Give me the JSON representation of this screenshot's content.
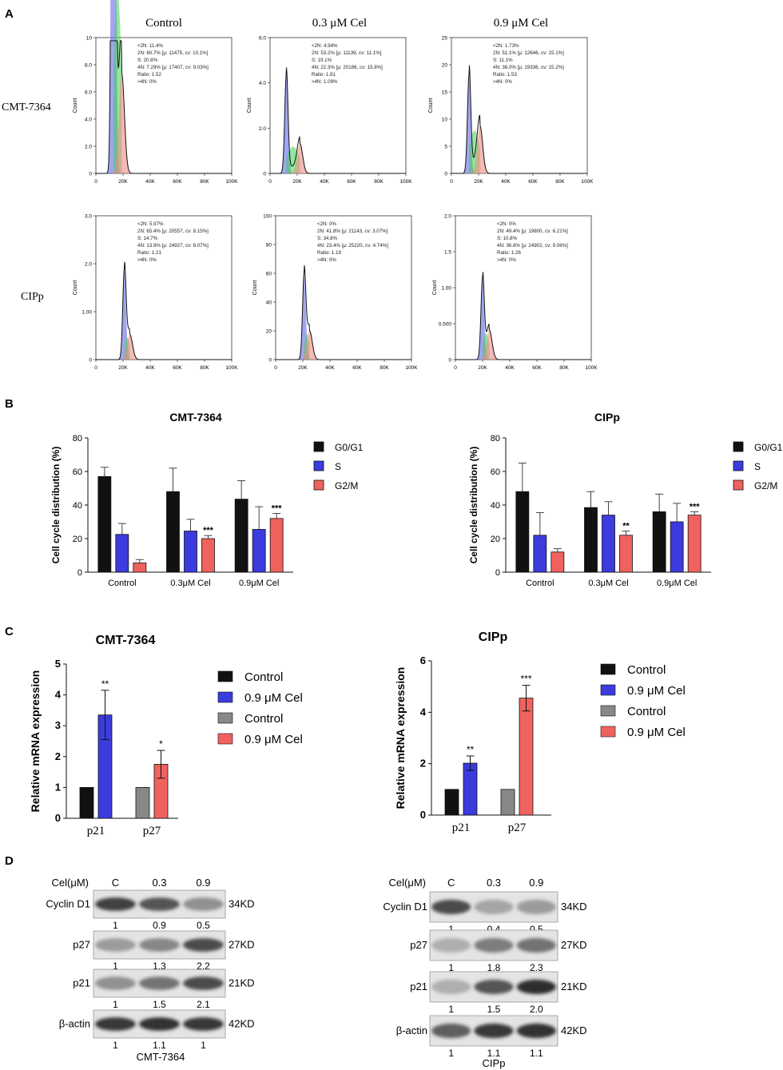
{
  "panels": {
    "A": {
      "letter": "A",
      "conditions": [
        "Control",
        "0.3 μM  Cel",
        "0.9 μM Cel"
      ],
      "rows": [
        {
          "cell_line": "CMT-7364",
          "plots": [
            {
              "y_ticks": [
                "10",
                "8.0",
                "6.0",
                "4.0",
                "2.0",
                "0"
              ],
              "stats": [
                "<2N: 11.4%",
                "2N: 60.7%  [μ: 11475, cv: 10.1%]",
                "S: 20.8%",
                "4N: 7.29%  [μ: 17407, cv: 9.03%]",
                "Ratio: 1.52",
                ">4N: 0%"
              ],
              "g1_peak": 8.6,
              "g1_pos": 0.13,
              "g2_pos": 0.19,
              "g2_height": 0.1
            },
            {
              "y_ticks": [
                "6.0",
                "4.0",
                "2.0",
                "0"
              ],
              "stats": [
                "<2N: 4.94%",
                "2N: 53.2%  [μ: 11139, cv: 11.1%]",
                "S: 19.1%",
                "4N: 22.3%  [μ: 20186, cv: 15.8%]",
                "Ratio: 1.81",
                ">4N: 1.09%"
              ],
              "g1_peak": 0.85,
              "g1_pos": 0.12,
              "g2_pos": 0.22,
              "g2_height": 0.3
            },
            {
              "y_ticks": [
                "25",
                "20",
                "15",
                "10",
                "5",
                "0"
              ],
              "stats": [
                "<2N: 1.73%",
                "2N: 51.1%  [μ: 12646, cv: 15.1%]",
                "S: 11.1%",
                "4N: 36.0%  [μ: 19336, cv: 15.2%]",
                "Ratio: 1.53",
                ">4N: 0%"
              ],
              "g1_peak": 0.85,
              "g1_pos": 0.13,
              "g2_pos": 0.21,
              "g2_height": 0.48
            }
          ]
        },
        {
          "cell_line": "CIPp",
          "plots": [
            {
              "y_ticks": [
                "3.0",
                "2.0",
                "1.00",
                "0"
              ],
              "stats": [
                "<2N: 5.97%",
                "2N: 65.4%  [μ: 20557, cv: 8.15%]",
                "S: 14.7%",
                "4N: 13.9%  [μ: 24927, cv: 6.07%]",
                "Ratio: 1.21",
                ">4N: 0%"
              ],
              "g1_peak": 0.72,
              "g1_pos": 0.21,
              "g2_pos": 0.25,
              "g2_height": 0.28
            },
            {
              "y_ticks": [
                "100",
                "80",
                "60",
                "40",
                "20",
                "0"
              ],
              "stats": [
                "<2N: 0%",
                "2N: 41.8%  [μ: 21143, cv: 3.07%]",
                "S: 34.8%",
                "4N: 23.4%  [μ: 25220, cv: 4.74%]",
                "Ratio: 1.19",
                ">4N: 0%"
              ],
              "g1_peak": 0.68,
              "g1_pos": 0.21,
              "g2_pos": 0.25,
              "g2_height": 0.34
            },
            {
              "y_ticks": [
                "2.0",
                "1.5",
                "1.00",
                "0.500",
                "0"
              ],
              "stats": [
                "<2N: 0%",
                "2N: 49.4%  [μ: 19800, cv: 6.21%]",
                "S: 10.8%",
                "4N: 36.8%  [μ: 24902, cv: 9.06%]",
                "Ratio: 1.26",
                ">4N: 0%"
              ],
              "g1_peak": 0.66,
              "g1_pos": 0.2,
              "g2_pos": 0.25,
              "g2_height": 0.36
            }
          ]
        }
      ],
      "x_ticks": [
        "0",
        "20K",
        "40K",
        "60K",
        "80K",
        "100K"
      ],
      "y_label": "Count"
    },
    "B": {
      "letter": "B"
    },
    "C": {
      "letter": "C"
    },
    "D": {
      "letter": "D"
    }
  },
  "chart_data": [
    {
      "id": "B-CMT-7364",
      "type": "bar",
      "title": "CMT-7364",
      "categories": [
        "Control",
        "0.3μM Cel",
        "0.9μM Cel"
      ],
      "ylabel": "Cell cycle distribution (%)",
      "ylim": [
        0,
        80
      ],
      "yticks": [
        0,
        20,
        40,
        60,
        80
      ],
      "series": [
        {
          "name": "G0/G1",
          "color": "#111111",
          "values": [
            57,
            48,
            43.5
          ],
          "errors": [
            5.5,
            14,
            11
          ]
        },
        {
          "name": "S",
          "color": "#3b3bde",
          "values": [
            22.5,
            24.5,
            25.5
          ],
          "errors": [
            6.5,
            7,
            13.5
          ]
        },
        {
          "name": "G2/M",
          "color": "#f0625e",
          "values": [
            5.5,
            20,
            32
          ],
          "errors": [
            2,
            1.8,
            3
          ]
        }
      ],
      "annotations": [
        {
          "category": "0.3μM Cel",
          "series": "G2/M",
          "text": "***"
        },
        {
          "category": "0.9μM Cel",
          "series": "G2/M",
          "text": "***"
        }
      ]
    },
    {
      "id": "B-CIPp",
      "type": "bar",
      "title": "CIPp",
      "categories": [
        "Control",
        "0.3μM Cel",
        "0.9μM Cel"
      ],
      "ylabel": "Cell cycle distribution (%)",
      "ylim": [
        0,
        80
      ],
      "yticks": [
        0,
        20,
        40,
        60,
        80
      ],
      "series": [
        {
          "name": "G0/G1",
          "color": "#111111",
          "values": [
            48,
            38.5,
            36
          ],
          "errors": [
            17,
            9.5,
            10.5
          ]
        },
        {
          "name": "S",
          "color": "#3b3bde",
          "values": [
            22,
            34,
            30
          ],
          "errors": [
            13.5,
            8,
            11
          ]
        },
        {
          "name": "G2/M",
          "color": "#f0625e",
          "values": [
            12,
            22,
            34
          ],
          "errors": [
            2,
            2.5,
            2
          ]
        }
      ],
      "annotations": [
        {
          "category": "0.3μM Cel",
          "series": "G2/M",
          "text": "**"
        },
        {
          "category": "0.9μM Cel",
          "series": "G2/M",
          "text": "***"
        }
      ]
    },
    {
      "id": "C-CMT-7364",
      "type": "bar",
      "title": "CMT-7364",
      "categories": [
        "p21",
        "p27"
      ],
      "ylabel": "Relative mRNA expression",
      "ylim": [
        0,
        5
      ],
      "yticks": [
        0,
        1,
        2,
        3,
        4,
        5
      ],
      "groups": [
        {
          "category": "p21",
          "bars": [
            {
              "name": "Control",
              "color": "#111111",
              "value": 1,
              "error": 0
            },
            {
              "name": "0.9 μM Cel",
              "color": "#3b3bde",
              "value": 3.35,
              "error": 0.8,
              "sig": "**"
            }
          ]
        },
        {
          "category": "p27",
          "bars": [
            {
              "name": "Control",
              "color": "#888888",
              "value": 1,
              "error": 0
            },
            {
              "name": "0.9 μM Cel",
              "color": "#f0625e",
              "value": 1.75,
              "error": 0.45,
              "sig": "*"
            }
          ]
        }
      ]
    },
    {
      "id": "C-CIPp",
      "type": "bar",
      "title": "CIPp",
      "categories": [
        "p21",
        "p27"
      ],
      "ylabel": "Relative mRNA expression",
      "ylim": [
        0,
        6
      ],
      "yticks": [
        0,
        2,
        4,
        6
      ],
      "groups": [
        {
          "category": "p21",
          "bars": [
            {
              "name": "Control",
              "color": "#111111",
              "value": 1,
              "error": 0
            },
            {
              "name": "0.9 μM Cel",
              "color": "#3b3bde",
              "value": 2.02,
              "error": 0.28,
              "sig": "**"
            }
          ]
        },
        {
          "category": "p27",
          "bars": [
            {
              "name": "Control",
              "color": "#888888",
              "value": 1,
              "error": 0
            },
            {
              "name": "0.9 μM Cel",
              "color": "#f0625e",
              "value": 4.55,
              "error": 0.5,
              "sig": "***"
            }
          ]
        }
      ]
    }
  ],
  "legend_C": [
    {
      "name": "Control",
      "color": "#111111"
    },
    {
      "name": "0.9 μM Cel",
      "color": "#3b3bde"
    },
    {
      "name": "Control",
      "color": "#888888"
    },
    {
      "name": "0.9 μM Cel",
      "color": "#f0625e"
    }
  ],
  "blots": [
    {
      "cell_line": "CMT-7364",
      "header_label": "Cel(μM)",
      "lanes": [
        "C",
        "0.3",
        "0.9"
      ],
      "proteins": [
        {
          "name": "Cyclin D1",
          "size": "34KD",
          "quant": [
            "1",
            "0.9",
            "0.5"
          ],
          "intensity": [
            0.85,
            0.75,
            0.45
          ]
        },
        {
          "name": "p27",
          "size": "27KD",
          "quant": [
            "1",
            "1.3",
            "2.2"
          ],
          "intensity": [
            0.4,
            0.5,
            0.8
          ]
        },
        {
          "name": "p21",
          "size": "21KD",
          "quant": [
            "1",
            "1.5",
            "2.1"
          ],
          "intensity": [
            0.45,
            0.6,
            0.8
          ]
        },
        {
          "name": "β-actin",
          "size": "42KD",
          "quant": [
            "1",
            "1.1",
            "1"
          ],
          "intensity": [
            0.9,
            0.92,
            0.9
          ]
        }
      ]
    },
    {
      "cell_line": "CIPp",
      "header_label": "Cel(μM)",
      "lanes": [
        "C",
        "0.3",
        "0.9"
      ],
      "proteins": [
        {
          "name": "Cyclin D1",
          "size": "34KD",
          "quant": [
            "1",
            "0.4",
            "0.5"
          ],
          "intensity": [
            0.8,
            0.35,
            0.4
          ]
        },
        {
          "name": "p27",
          "size": "27KD",
          "quant": [
            "1",
            "1.8",
            "2.3"
          ],
          "intensity": [
            0.3,
            0.55,
            0.6
          ]
        },
        {
          "name": "p21",
          "size": "21KD",
          "quant": [
            "1",
            "1.5",
            "2.0"
          ],
          "intensity": [
            0.3,
            0.75,
            0.95
          ]
        },
        {
          "name": "β-actin",
          "size": "42KD",
          "quant": [
            "1",
            "1.1",
            "1.1"
          ],
          "intensity": [
            0.7,
            0.9,
            0.92
          ]
        }
      ]
    }
  ]
}
